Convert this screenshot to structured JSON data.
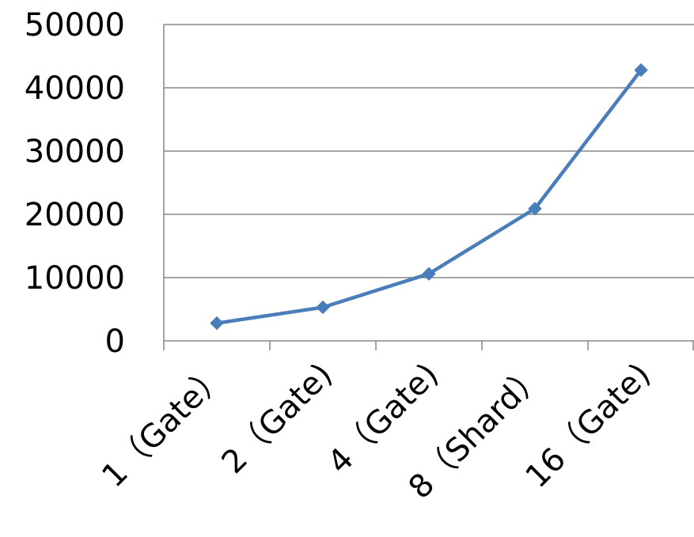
{
  "chart_data": {
    "type": "line",
    "categories": [
      "1（Gate）",
      "2（Gate)",
      "4（Gate)",
      "8（Shard）",
      "16（Gate)"
    ],
    "series": [
      {
        "values": [
          2800,
          5300,
          10600,
          20900,
          42800
        ],
        "color": "#4a7ebb",
        "marker": "diamond"
      }
    ],
    "y_ticks": [
      "0",
      "10000",
      "20000",
      "30000",
      "40000",
      "50000"
    ],
    "ylim": [
      0,
      50000
    ],
    "grid": true,
    "legend": "none",
    "colors": {
      "line": "#4a7ebb",
      "grid": "#868686",
      "text": "#000000"
    }
  }
}
